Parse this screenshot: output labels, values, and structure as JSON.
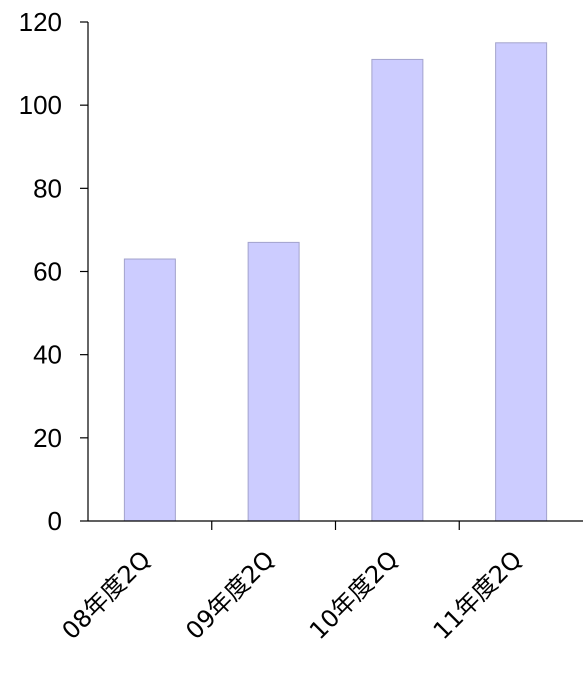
{
  "chart_data": {
    "type": "bar",
    "categories": [
      "08年度2Q",
      "09年度2Q",
      "10年度2Q",
      "11年度2Q"
    ],
    "values": [
      63,
      67,
      111,
      115
    ],
    "title": "",
    "xlabel": "",
    "ylabel": "",
    "ylim": [
      0,
      120
    ],
    "y_ticks": [
      0,
      20,
      40,
      60,
      80,
      100,
      120
    ],
    "y_tick_labels": [
      "0",
      "20",
      "40",
      "60",
      "80",
      "100",
      "120"
    ],
    "grid": false,
    "legend": "none",
    "colors": {
      "bar_fill": "#ccccff",
      "bar_stroke": "#a3a3cc",
      "axis": "#000000"
    }
  }
}
